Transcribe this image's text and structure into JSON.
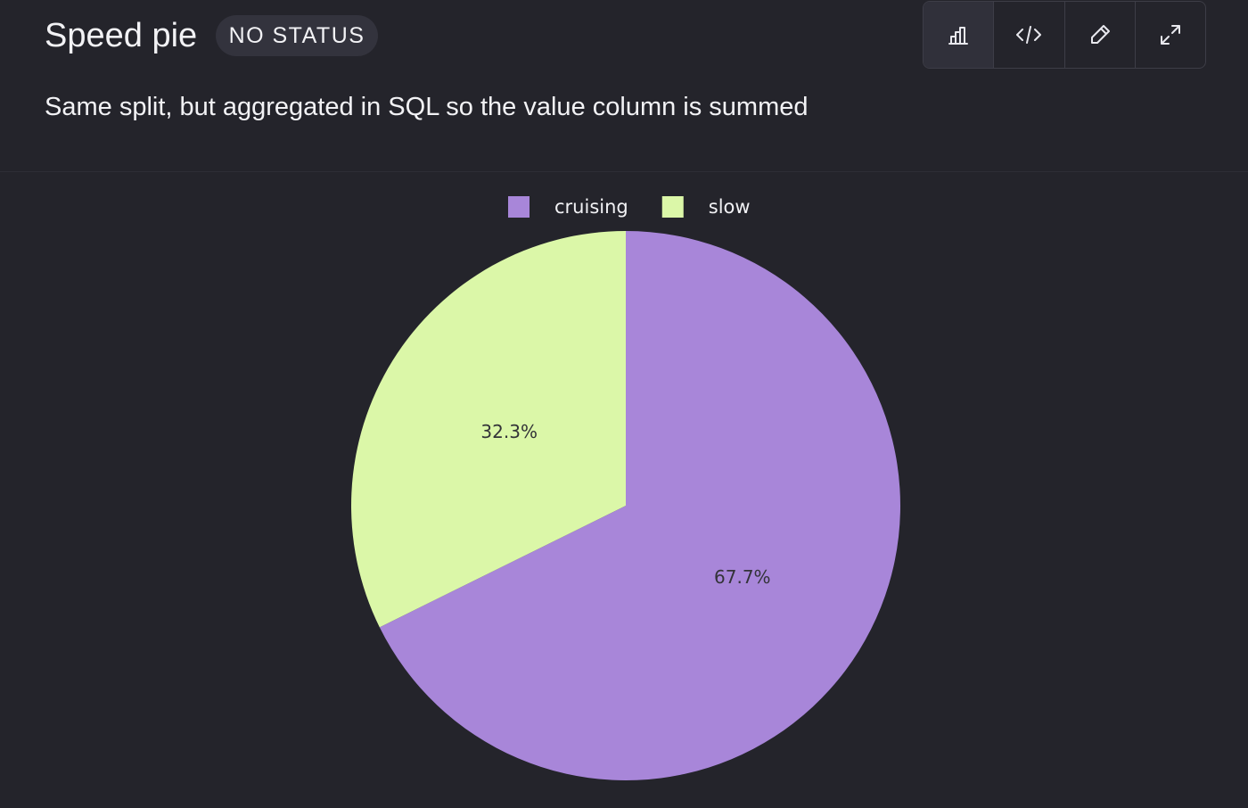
{
  "header": {
    "title": "Speed pie",
    "status": "NO STATUS",
    "description": "Same split, but aggregated in SQL so the value column is summed"
  },
  "chart_data": {
    "type": "pie",
    "categories": [
      "cruising",
      "slow"
    ],
    "values": [
      67.7,
      32.3
    ],
    "value_labels": [
      "67.7%",
      "32.3%"
    ],
    "colors": [
      "#a886d9",
      "#dbf7a8"
    ],
    "legend": "top"
  }
}
